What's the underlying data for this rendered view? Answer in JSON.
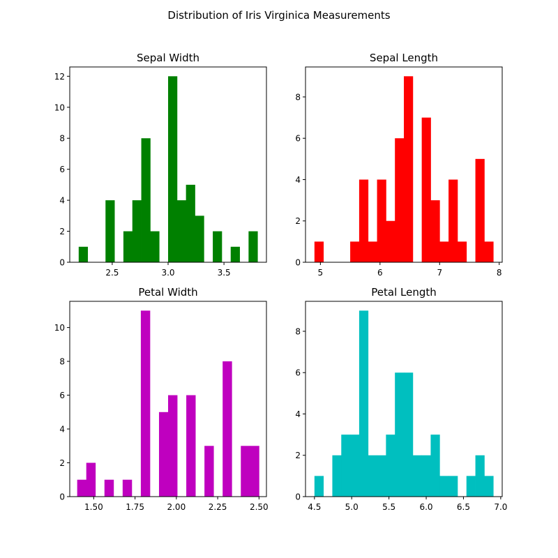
{
  "figure": {
    "title": "Distribution of Iris Virginica Measurements"
  },
  "chart_data": [
    {
      "type": "bar",
      "title": "Sepal Width",
      "color": "#008000",
      "xlim": [
        2.12,
        3.88
      ],
      "ylim": [
        0,
        12.6
      ],
      "xticks": [
        2.5,
        3.0,
        3.5
      ],
      "xtick_labels": [
        "2.5",
        "3.0",
        "3.5"
      ],
      "yticks": [
        0,
        2,
        4,
        6,
        8,
        10,
        12
      ],
      "ytick_labels": [
        "0",
        "2",
        "4",
        "6",
        "8",
        "10",
        "12"
      ],
      "bins": [
        {
          "x0": 2.2,
          "x1": 2.28,
          "value": 1
        },
        {
          "x0": 2.44,
          "x1": 2.52,
          "value": 4
        },
        {
          "x0": 2.6,
          "x1": 2.68,
          "value": 2
        },
        {
          "x0": 2.68,
          "x1": 2.76,
          "value": 4
        },
        {
          "x0": 2.76,
          "x1": 2.84,
          "value": 8
        },
        {
          "x0": 2.84,
          "x1": 2.92,
          "value": 2
        },
        {
          "x0": 3.0,
          "x1": 3.08,
          "value": 12
        },
        {
          "x0": 3.08,
          "x1": 3.16,
          "value": 4
        },
        {
          "x0": 3.16,
          "x1": 3.24,
          "value": 5
        },
        {
          "x0": 3.24,
          "x1": 3.32,
          "value": 3
        },
        {
          "x0": 3.4,
          "x1": 3.48,
          "value": 2
        },
        {
          "x0": 3.56,
          "x1": 3.64,
          "value": 1
        },
        {
          "x0": 3.72,
          "x1": 3.8,
          "value": 2
        }
      ]
    },
    {
      "type": "bar",
      "title": "Sepal Length",
      "color": "#ff0000",
      "xlim": [
        4.75,
        8.05
      ],
      "ylim": [
        0,
        9.45
      ],
      "xticks": [
        5,
        6,
        7,
        8
      ],
      "xtick_labels": [
        "5",
        "6",
        "7",
        "8"
      ],
      "yticks": [
        0,
        2,
        4,
        6,
        8
      ],
      "ytick_labels": [
        "0",
        "2",
        "4",
        "6",
        "8"
      ],
      "bins": [
        {
          "x0": 4.9,
          "x1": 5.05,
          "value": 1
        },
        {
          "x0": 5.5,
          "x1": 5.65,
          "value": 1
        },
        {
          "x0": 5.65,
          "x1": 5.8,
          "value": 4
        },
        {
          "x0": 5.8,
          "x1": 5.95,
          "value": 1
        },
        {
          "x0": 5.95,
          "x1": 6.1,
          "value": 4
        },
        {
          "x0": 6.1,
          "x1": 6.25,
          "value": 2
        },
        {
          "x0": 6.25,
          "x1": 6.4,
          "value": 6
        },
        {
          "x0": 6.4,
          "x1": 6.55,
          "value": 9
        },
        {
          "x0": 6.7,
          "x1": 6.85,
          "value": 7
        },
        {
          "x0": 6.85,
          "x1": 7.0,
          "value": 3
        },
        {
          "x0": 7.0,
          "x1": 7.15,
          "value": 1
        },
        {
          "x0": 7.15,
          "x1": 7.3,
          "value": 4
        },
        {
          "x0": 7.3,
          "x1": 7.45,
          "value": 1
        },
        {
          "x0": 7.6,
          "x1": 7.75,
          "value": 5
        },
        {
          "x0": 7.75,
          "x1": 7.9,
          "value": 1
        }
      ]
    },
    {
      "type": "bar",
      "title": "Petal Width",
      "color": "#bf00bf",
      "xlim": [
        1.355,
        2.545
      ],
      "ylim": [
        0,
        11.55
      ],
      "xticks": [
        1.5,
        1.75,
        2.0,
        2.25,
        2.5
      ],
      "xtick_labels": [
        "1.50",
        "1.75",
        "2.00",
        "2.25",
        "2.50"
      ],
      "yticks": [
        0,
        2,
        4,
        6,
        8,
        10
      ],
      "ytick_labels": [
        "0",
        "2",
        "4",
        "6",
        "8",
        "10"
      ],
      "bins": [
        {
          "x0": 1.4,
          "x1": 1.455,
          "value": 1
        },
        {
          "x0": 1.455,
          "x1": 1.51,
          "value": 2
        },
        {
          "x0": 1.565,
          "x1": 1.62,
          "value": 1
        },
        {
          "x0": 1.675,
          "x1": 1.73,
          "value": 1
        },
        {
          "x0": 1.785,
          "x1": 1.84,
          "value": 11
        },
        {
          "x0": 1.895,
          "x1": 1.95,
          "value": 5
        },
        {
          "x0": 1.95,
          "x1": 2.005,
          "value": 6
        },
        {
          "x0": 2.06,
          "x1": 2.115,
          "value": 6
        },
        {
          "x0": 2.17,
          "x1": 2.225,
          "value": 3
        },
        {
          "x0": 2.28,
          "x1": 2.335,
          "value": 8
        },
        {
          "x0": 2.39,
          "x1": 2.445,
          "value": 3
        },
        {
          "x0": 2.445,
          "x1": 2.5,
          "value": 3
        }
      ]
    },
    {
      "type": "bar",
      "title": "Petal Length",
      "color": "#00bfbf",
      "xlim": [
        4.38,
        7.02
      ],
      "ylim": [
        0,
        9.45
      ],
      "xticks": [
        4.5,
        5.0,
        5.5,
        6.0,
        6.5,
        7.0
      ],
      "xtick_labels": [
        "4.5",
        "5.0",
        "5.5",
        "6.0",
        "6.5",
        "7.0"
      ],
      "yticks": [
        0,
        2,
        4,
        6,
        8
      ],
      "ytick_labels": [
        "0",
        "2",
        "4",
        "6",
        "8"
      ],
      "bins": [
        {
          "x0": 4.5,
          "x1": 4.62,
          "value": 1
        },
        {
          "x0": 4.74,
          "x1": 4.86,
          "value": 2
        },
        {
          "x0": 4.86,
          "x1": 4.98,
          "value": 3
        },
        {
          "x0": 4.98,
          "x1": 5.1,
          "value": 3
        },
        {
          "x0": 5.1,
          "x1": 5.22,
          "value": 9
        },
        {
          "x0": 5.22,
          "x1": 5.34,
          "value": 2
        },
        {
          "x0": 5.34,
          "x1": 5.46,
          "value": 2
        },
        {
          "x0": 5.46,
          "x1": 5.58,
          "value": 3
        },
        {
          "x0": 5.58,
          "x1": 5.7,
          "value": 6
        },
        {
          "x0": 5.7,
          "x1": 5.82,
          "value": 6
        },
        {
          "x0": 5.82,
          "x1": 5.94,
          "value": 2
        },
        {
          "x0": 5.94,
          "x1": 6.06,
          "value": 2
        },
        {
          "x0": 6.06,
          "x1": 6.18,
          "value": 3
        },
        {
          "x0": 6.18,
          "x1": 6.3,
          "value": 1
        },
        {
          "x0": 6.3,
          "x1": 6.42,
          "value": 1
        },
        {
          "x0": 6.54,
          "x1": 6.66,
          "value": 1
        },
        {
          "x0": 6.66,
          "x1": 6.78,
          "value": 2
        },
        {
          "x0": 6.78,
          "x1": 6.9,
          "value": 1
        }
      ]
    }
  ]
}
